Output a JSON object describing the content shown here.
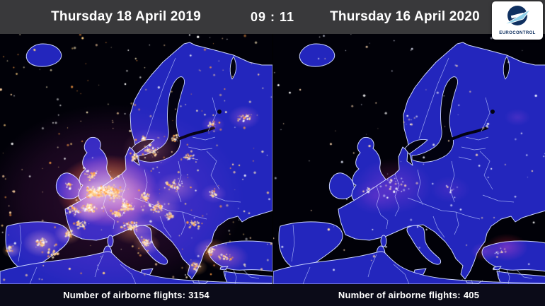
{
  "header": {
    "left_date": "Thursday 18 April 2019",
    "time": "09 : 11",
    "right_date": "Thursday 16 April 2020"
  },
  "logo": {
    "wordmark": "EUROCONTROL",
    "emblem_icon": "eurocontrol-e-with-aircraft"
  },
  "panels": [
    {
      "date": "Thursday 18 April 2019",
      "flights_label": "Number of airborne flights:",
      "flights_value": "3154",
      "traffic_level": "very-high"
    },
    {
      "date": "Thursday 16 April 2020",
      "flights_label": "Number of airborne flights:",
      "flights_value": "405",
      "traffic_level": "very-low"
    }
  ],
  "colors": {
    "header_bg": "#39393b",
    "footer_bg": "#0b0b18",
    "sea": "#010108",
    "land": "#2326bd",
    "country_border": "#c9d3ff",
    "traffic_hot": "#ffb347",
    "traffic_core": "#fff3c4",
    "traffic_haze_purple": "#8a2a8c",
    "logo_navy": "#0f3060",
    "logo_lightblue": "#8ed0ea",
    "text": "#ffffff"
  }
}
